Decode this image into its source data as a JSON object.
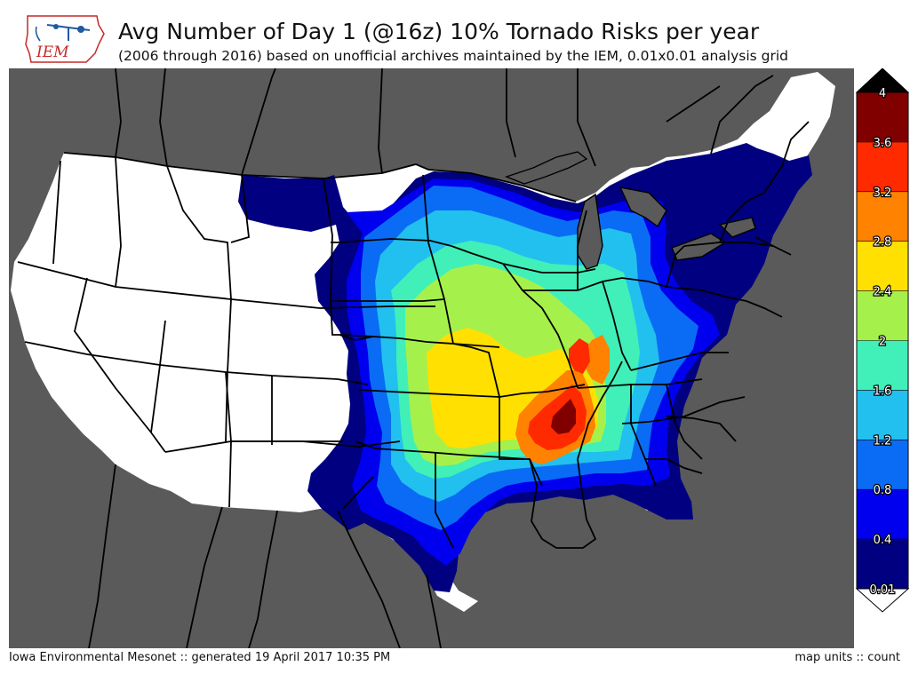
{
  "logo": {
    "text": "IEM"
  },
  "title": "Avg Number of Day 1 (@16z) 10% Tornado Risks per year",
  "subtitle": "(2006 through 2016) based on unofficial archives maintained by the IEM, 0.01x0.01 analysis grid",
  "footer": {
    "left": "Iowa Environmental Mesonet :: generated 19 April 2017 10:35 PM",
    "right": "map units :: count"
  },
  "colors": {
    "land": "#5a5a5a",
    "no_data": "#ffffff",
    "borders": "#000000"
  },
  "legend": {
    "labels": [
      "4",
      "3.6",
      "3.2",
      "2.8",
      "2.4",
      "2",
      "1.6",
      "1.2",
      "0.8",
      "0.4",
      "0.01"
    ],
    "bins": [
      {
        "from": 0.01,
        "to": 0.4,
        "color": "#000080"
      },
      {
        "from": 0.4,
        "to": 0.8,
        "color": "#0000ee"
      },
      {
        "from": 0.8,
        "to": 1.2,
        "color": "#0a6cf5"
      },
      {
        "from": 1.2,
        "to": 1.6,
        "color": "#22c0ee"
      },
      {
        "from": 1.6,
        "to": 2.0,
        "color": "#40f0b8"
      },
      {
        "from": 2.0,
        "to": 2.4,
        "color": "#a6f04c"
      },
      {
        "from": 2.4,
        "to": 2.8,
        "color": "#ffe000"
      },
      {
        "from": 2.8,
        "to": 3.2,
        "color": "#ff8200"
      },
      {
        "from": 3.2,
        "to": 3.6,
        "color": "#ff2a00"
      },
      {
        "from": 3.6,
        "to": 4.0,
        "color": "#800000"
      }
    ],
    "over_color": "#000000",
    "under_color": "#ffffff"
  }
}
